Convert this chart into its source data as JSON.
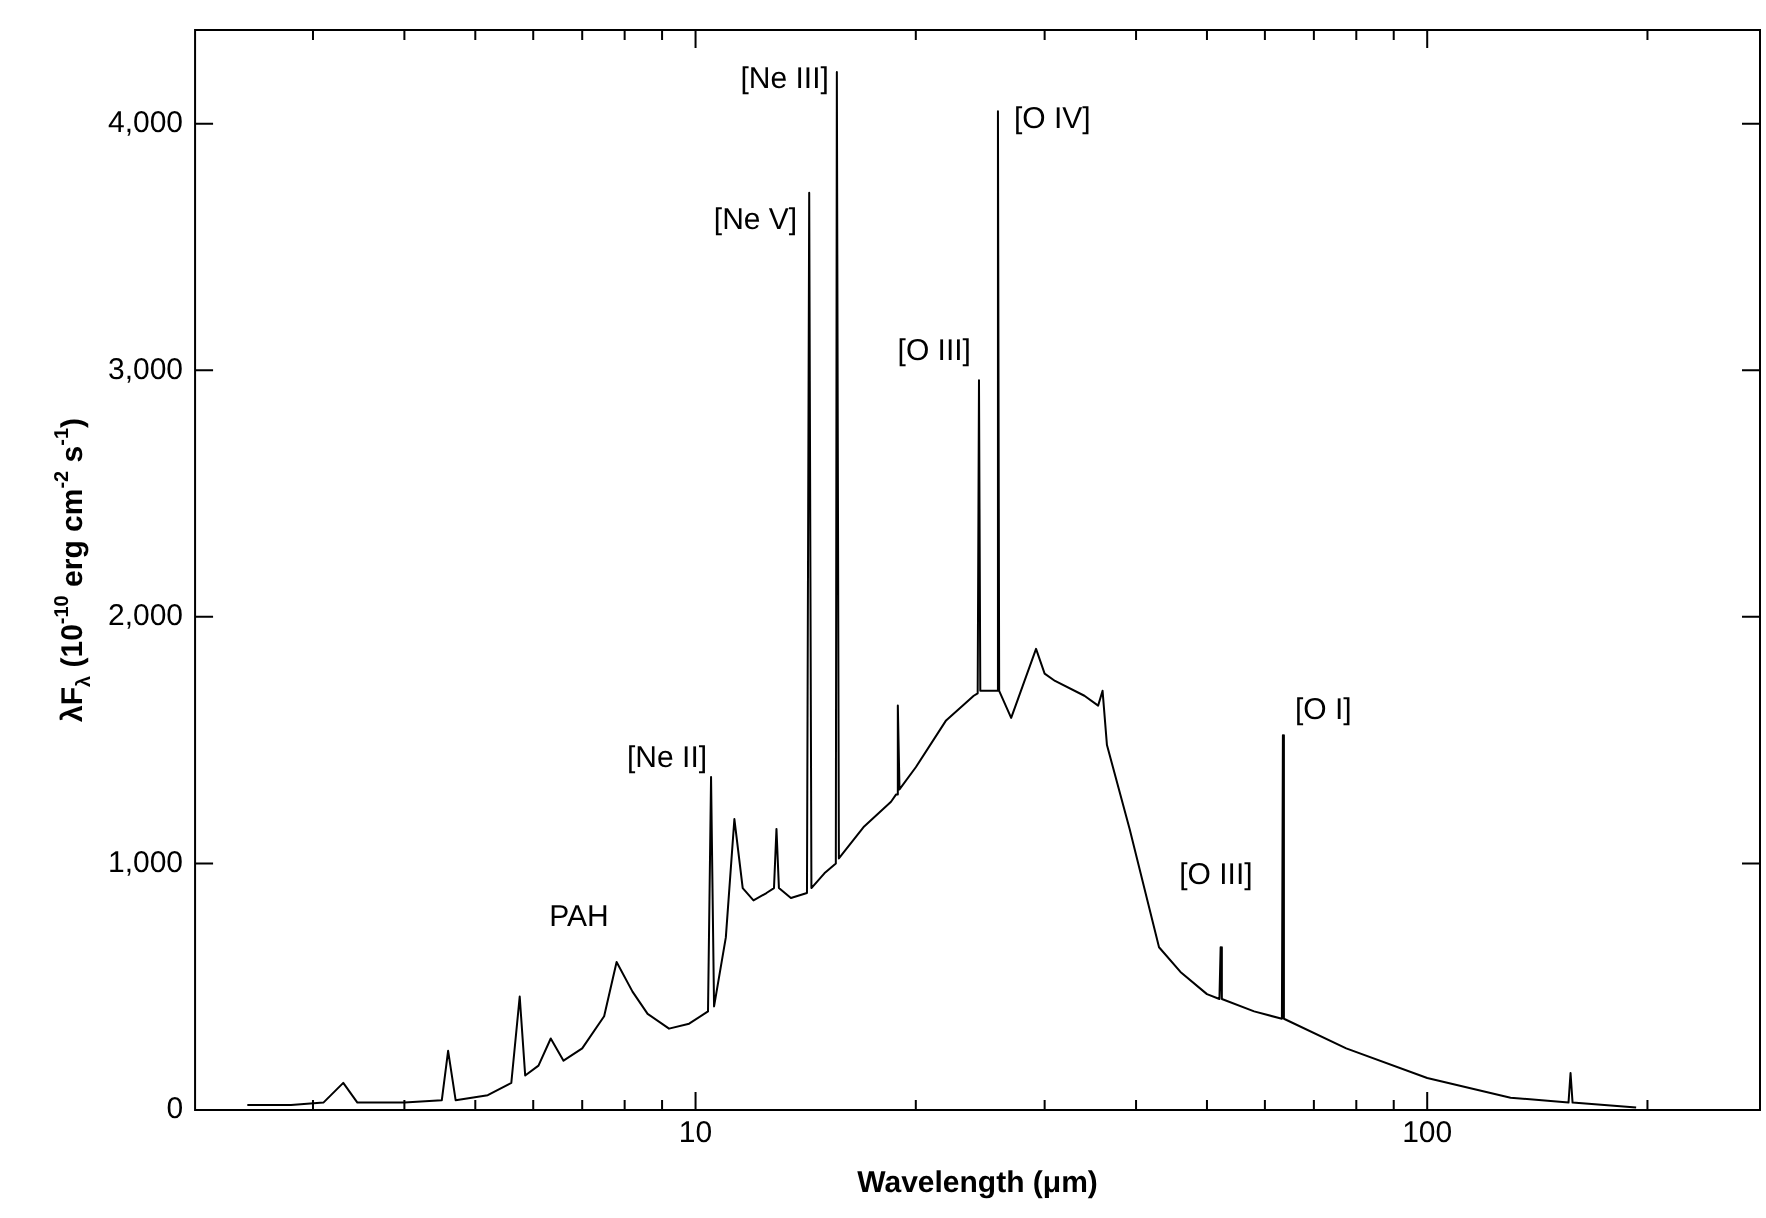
{
  "chart_data": {
    "type": "line",
    "xlabel": "Wavelength (μm)",
    "ylabel": "λF$_{λ}$ (10$^{-10}$ erg cm$^{-2}$ s$^{-1}$)",
    "log": "x",
    "xlim": [
      2.07,
      285
    ],
    "ylim": [
      0,
      4380
    ],
    "xticks": [
      {
        "value": 3,
        "label": null
      },
      {
        "value": 4,
        "label": null
      },
      {
        "value": 5,
        "label": null
      },
      {
        "value": 6,
        "label": null
      },
      {
        "value": 7,
        "label": null
      },
      {
        "value": 8,
        "label": null
      },
      {
        "value": 9,
        "label": null
      },
      10,
      {
        "value": 20,
        "label": null
      },
      {
        "value": 30,
        "label": null
      },
      {
        "value": 40,
        "label": null
      },
      {
        "value": 50,
        "label": null
      },
      {
        "value": 60,
        "label": null
      },
      {
        "value": 70,
        "label": null
      },
      {
        "value": 80,
        "label": null
      },
      {
        "value": 90,
        "label": null
      },
      100,
      {
        "value": 200,
        "label": null
      }
    ],
    "yticks": [
      0,
      {
        "value": 1000,
        "label": "1,000"
      },
      {
        "value": 2000,
        "label": "2,000"
      },
      {
        "value": 3000,
        "label": "3,000"
      },
      {
        "value": 4000,
        "label": "4,000"
      }
    ],
    "grid": false,
    "legend": false,
    "marker": "none",
    "line_style": "solid",
    "series": [
      {
        "color": "#000000",
        "x": [
          2.44,
          2.8,
          3.1,
          3.3,
          3.45,
          4.0,
          4.5,
          4.59,
          4.7,
          5.2,
          5.6,
          5.75,
          5.85,
          6.1,
          6.34,
          6.6,
          7.0,
          7.5,
          7.8,
          8.2,
          8.6,
          9.2,
          9.8,
          10.4,
          10.5,
          10.6,
          11.0,
          11.3,
          11.6,
          12.0,
          12.5,
          12.8,
          12.9,
          13.0,
          13.5,
          14.2,
          14.3,
          14.4,
          15.0,
          15.55,
          15.6,
          15.7,
          17.0,
          18.5,
          18.8,
          18.9,
          19.0,
          20.0,
          22.0,
          24.0,
          24.3,
          24.4,
          24.5,
          25.8,
          25.9,
          26.0,
          27.0,
          28.0,
          29.2,
          30.0,
          31.0,
          34.0,
          35.5,
          36.0,
          36.5,
          39.2,
          43.0,
          46.0,
          50.0,
          52.0,
          52.2,
          52.4,
          58.0,
          63.3,
          63.5,
          63.7,
          77.5,
          100,
          130,
          156,
          157,
          158,
          193
        ],
        "values": [
          20,
          20,
          30,
          110,
          30,
          30,
          40,
          240,
          40,
          60,
          110,
          460,
          140,
          180,
          290,
          200,
          250,
          380,
          600,
          480,
          390,
          330,
          350,
          400,
          1350,
          420,
          700,
          1180,
          900,
          850,
          880,
          900,
          1140,
          900,
          860,
          880,
          3720,
          900,
          960,
          1000,
          4210,
          1020,
          1150,
          1250,
          1280,
          1640,
          1300,
          1390,
          1580,
          1680,
          1690,
          2960,
          1700,
          1700,
          4050,
          1700,
          1590,
          1720,
          1870,
          1770,
          1740,
          1680,
          1640,
          1700,
          1480,
          1140,
          660,
          560,
          470,
          450,
          660,
          450,
          400,
          370,
          1520,
          370,
          250,
          130,
          50,
          30,
          150,
          30,
          10
        ]
      }
    ],
    "annotations": [
      {
        "text": "PAH",
        "x": 7.8,
        "y": 600
      },
      {
        "text": "[Ne II]",
        "x": 10.5,
        "y": 1345
      },
      {
        "text": "[Ne V]",
        "x": 14.3,
        "y": 3720
      },
      {
        "text": "[Ne III]",
        "x": 15.6,
        "y": 4210
      },
      {
        "text": "[O III]",
        "x": 24.4,
        "y": 2960
      },
      {
        "text": "[O IV]",
        "x": 25.9,
        "y": 4050
      },
      {
        "text": "[O III]",
        "x": 52.2,
        "y": 660
      },
      {
        "text": "[O I]",
        "x": 63.5,
        "y": 1520
      }
    ]
  }
}
